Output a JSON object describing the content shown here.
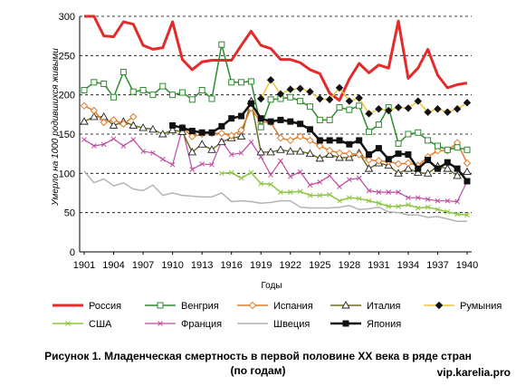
{
  "chart_data": {
    "type": "line",
    "title": "",
    "xlabel": "Годы",
    "ylabel": "Умерло на 1000 родившихся живыми",
    "ylim": [
      0,
      300
    ],
    "yticks": [
      0,
      50,
      100,
      150,
      200,
      250,
      300
    ],
    "xtick_labels": [
      "1901",
      "1904",
      "1907",
      "1910",
      "1913",
      "1916",
      "1919",
      "1922",
      "1925",
      "1928",
      "1931",
      "1934",
      "1937",
      "1940"
    ],
    "x": [
      1901,
      1902,
      1903,
      1904,
      1905,
      1906,
      1907,
      1908,
      1909,
      1910,
      1911,
      1912,
      1913,
      1914,
      1915,
      1916,
      1917,
      1918,
      1919,
      1920,
      1921,
      1922,
      1923,
      1924,
      1925,
      1926,
      1927,
      1928,
      1929,
      1930,
      1931,
      1932,
      1933,
      1934,
      1935,
      1936,
      1937,
      1938,
      1939,
      1940
    ],
    "grid": "horizontal dashed",
    "legend_position": "bottom",
    "series": [
      {
        "name": "Россия",
        "color": "#e32b2b",
        "marker": "none",
        "width": 3,
        "values": [
          300,
          300,
          275,
          274,
          293,
          290,
          263,
          258,
          260,
          293,
          245,
          232,
          242,
          244,
          244,
          244,
          263,
          281,
          263,
          259,
          245,
          245,
          241,
          232,
          227,
          202,
          193,
          220,
          240,
          228,
          238,
          234,
          294,
          221,
          234,
          258,
          225,
          209,
          213,
          215
        ]
      },
      {
        "name": "Венгрия",
        "color": "#2e8b2e",
        "marker": "square-open",
        "width": 1.5,
        "values": [
          206,
          216,
          214,
          197,
          229,
          204,
          206,
          200,
          211,
          200,
          203,
          194,
          206,
          195,
          264,
          216,
          216,
          217,
          159,
          194,
          195,
          197,
          192,
          185,
          168,
          168,
          184,
          181,
          186,
          153,
          162,
          184,
          138,
          150,
          152,
          142,
          135,
          130,
          133,
          130
        ]
      },
      {
        "name": "Испания",
        "color": "#e07b2a",
        "marker": "diamond-open",
        "width": 1.5,
        "values": [
          186,
          180,
          165,
          168,
          163,
          172,
          null,
          null,
          null,
          null,
          158,
          147,
          150,
          151,
          151,
          148,
          155,
          183,
          165,
          165,
          145,
          142,
          147,
          142,
          135,
          129,
          126,
          125,
          124,
          117,
          116,
          115,
          112,
          113,
          110,
          121,
          129,
          129,
          139,
          113
        ]
      },
      {
        "name": "Италия",
        "color": "#6e6e1e",
        "marker": "triangle-open",
        "width": 1.5,
        "values": [
          166,
          172,
          172,
          161,
          166,
          161,
          158,
          156,
          150,
          155,
          153,
          127,
          137,
          130,
          140,
          145,
          147,
          192,
          127,
          127,
          130,
          128,
          128,
          125,
          119,
          124,
          120,
          120,
          126,
          106,
          113,
          110,
          100,
          106,
          101,
          100,
          109,
          106,
          97,
          102
        ]
      },
      {
        "name": "Румыния",
        "color": "#f0c23a",
        "marker": "diamond-filled",
        "width": 1.5,
        "values": [
          null,
          null,
          null,
          null,
          null,
          null,
          null,
          null,
          null,
          null,
          null,
          null,
          null,
          null,
          null,
          null,
          null,
          null,
          195,
          219,
          201,
          207,
          208,
          204,
          195,
          194,
          209,
          192,
          196,
          176,
          182,
          180,
          184,
          183,
          192,
          178,
          182,
          178,
          182,
          190
        ]
      },
      {
        "name": "США",
        "color": "#8cc63e",
        "marker": "x",
        "width": 1.5,
        "values": [
          null,
          null,
          null,
          null,
          null,
          null,
          null,
          null,
          null,
          null,
          null,
          null,
          null,
          null,
          100,
          101,
          94,
          101,
          87,
          86,
          76,
          76,
          77,
          72,
          72,
          73,
          65,
          69,
          68,
          65,
          62,
          58,
          58,
          60,
          56,
          57,
          54,
          51,
          48,
          47
        ]
      },
      {
        "name": "Франция",
        "color": "#c04b9e",
        "marker": "x",
        "width": 1.2,
        "values": [
          143,
          135,
          137,
          144,
          135,
          143,
          128,
          126,
          118,
          111,
          157,
          105,
          112,
          111,
          141,
          124,
          126,
          140,
          121,
          98,
          116,
          96,
          102,
          85,
          89,
          97,
          83,
          92,
          94,
          78,
          76,
          76,
          76,
          69,
          69,
          67,
          65,
          65,
          64,
          90
        ]
      },
      {
        "name": "Швеция",
        "color": "#b4b4b4",
        "marker": "none",
        "width": 1.5,
        "values": [
          103,
          88,
          93,
          84,
          88,
          80,
          78,
          85,
          72,
          75,
          72,
          71,
          70,
          70,
          75,
          64,
          65,
          64,
          62,
          63,
          65,
          65,
          57,
          56,
          56,
          56,
          57,
          59,
          54,
          55,
          57,
          51,
          50,
          47,
          47,
          44,
          45,
          42,
          39,
          39
        ]
      },
      {
        "name": "Япония",
        "color": "#111111",
        "marker": "square-filled",
        "width": 2.5,
        "values": [
          null,
          null,
          null,
          null,
          null,
          null,
          null,
          null,
          null,
          161,
          158,
          154,
          152,
          152,
          160,
          170,
          173,
          189,
          170,
          166,
          168,
          166,
          163,
          156,
          142,
          142,
          142,
          137,
          142,
          124,
          132,
          118,
          125,
          124,
          106,
          117,
          106,
          114,
          106,
          90
        ]
      }
    ]
  },
  "caption": {
    "line1": "Рисунок 1. Младенческая смертность в первой половине XX века в ряде стран",
    "line2": "(по годам)"
  },
  "source": "vip.karelia.pro"
}
